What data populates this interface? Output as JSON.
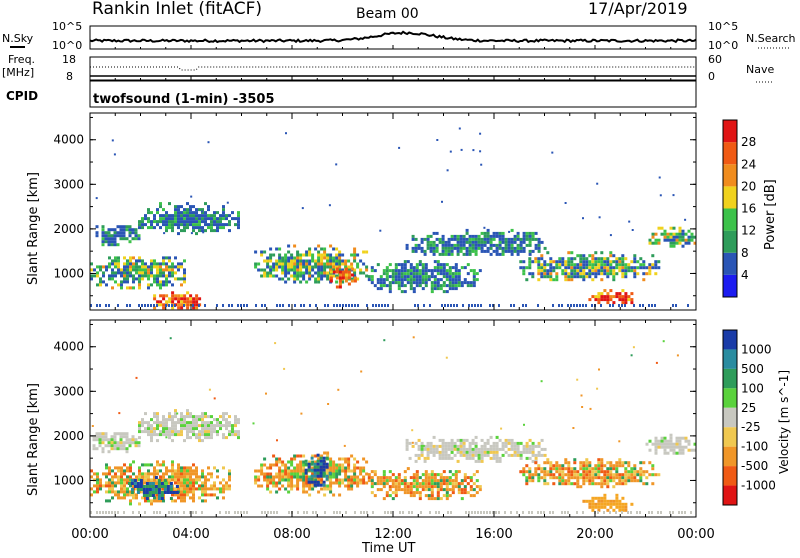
{
  "header": {
    "station": "Rankin Inlet (fitACF)",
    "beam": "Beam 00",
    "date": "17/Apr/2019"
  },
  "top_panels": {
    "nsky_label": "N.Sky",
    "nsearch_label": "N.Search",
    "freq_label": "Freq.",
    "freq_unit": "[MHz]",
    "nave_label": "Nave",
    "cpid_label": "CPID",
    "cpid_value": "twofsound (1-min) -3505",
    "noise_left_ticks": [
      "10^5",
      "10^0"
    ],
    "noise_right_ticks": [
      "10^5",
      "10^0"
    ],
    "freq_left_ticks": [
      "18",
      "8"
    ],
    "freq_right_ticks": [
      "60",
      "0"
    ]
  },
  "x_axis": {
    "label": "Time UT",
    "ticks": [
      "00:00",
      "04:00",
      "08:00",
      "12:00",
      "16:00",
      "20:00",
      "00:00"
    ]
  },
  "colors": {
    "power": [
      "#1c1cf0",
      "#2a55b5",
      "#2e9c5a",
      "#3cc24a",
      "#f0d21e",
      "#f08c1e",
      "#f05a14",
      "#e01414"
    ],
    "velocity": [
      "#1a3ca8",
      "#2a8ca0",
      "#2e9c5a",
      "#5ad23c",
      "#c8c8c0",
      "#f0c850",
      "#f09628",
      "#f05a14",
      "#e01414"
    ]
  },
  "chart_data": [
    {
      "type": "heatmap",
      "title": "Power",
      "xlabel": "Time UT",
      "ylabel": "Slant Range [km]",
      "xlim": [
        0,
        24
      ],
      "ylim": [
        180,
        4600
      ],
      "yticks": [
        1000,
        2000,
        3000,
        4000
      ],
      "colorbar": {
        "label": "Power [dB]",
        "ticks": [
          4,
          8,
          12,
          16,
          20,
          24,
          28
        ],
        "range": [
          0,
          32
        ]
      },
      "regions": [
        {
          "t": [
            0.1,
            1.9
          ],
          "r": [
            1650,
            2150
          ],
          "level": "low"
        },
        {
          "t": [
            1.9,
            5.9
          ],
          "r": [
            1900,
            2600
          ],
          "level": "low"
        },
        {
          "t": [
            0.0,
            3.8
          ],
          "r": [
            700,
            1450
          ],
          "level": "mid"
        },
        {
          "t": [
            2.5,
            4.5
          ],
          "r": [
            200,
            600
          ],
          "level": "high"
        },
        {
          "t": [
            6.5,
            11.0
          ],
          "r": [
            800,
            1650
          ],
          "level": "mid"
        },
        {
          "t": [
            9.5,
            10.5
          ],
          "r": [
            700,
            1200
          ],
          "level": "high"
        },
        {
          "t": [
            11.0,
            15.5
          ],
          "r": [
            600,
            1300
          ],
          "level": "low"
        },
        {
          "t": [
            12.5,
            18.0
          ],
          "r": [
            1400,
            2000
          ],
          "level": "low"
        },
        {
          "t": [
            17.0,
            22.5
          ],
          "r": [
            850,
            1500
          ],
          "level": "mid"
        },
        {
          "t": [
            19.5,
            21.5
          ],
          "r": [
            350,
            650
          ],
          "level": "high"
        },
        {
          "t": [
            22.0,
            24.0
          ],
          "r": [
            1600,
            2050
          ],
          "level": "mid"
        }
      ]
    },
    {
      "type": "heatmap",
      "title": "Velocity",
      "xlabel": "Time UT",
      "ylabel": "Slant Range [km]",
      "xlim": [
        0,
        24
      ],
      "ylim": [
        180,
        4600
      ],
      "yticks": [
        1000,
        2000,
        3000,
        4000
      ],
      "colorbar": {
        "label": "Velocity [m s^-1]",
        "ticks": [
          1000,
          500,
          100,
          25,
          -25,
          -100,
          -500,
          -1000
        ]
      },
      "regions": [
        {
          "t": [
            0.1,
            1.9
          ],
          "r": [
            1650,
            2150
          ],
          "level": "gray"
        },
        {
          "t": [
            1.9,
            5.9
          ],
          "r": [
            1900,
            2600
          ],
          "level": "gray"
        },
        {
          "t": [
            0.0,
            5.5
          ],
          "r": [
            500,
            1450
          ],
          "level": "orange"
        },
        {
          "t": [
            1.5,
            3.5
          ],
          "r": [
            600,
            1100
          ],
          "level": "blue"
        },
        {
          "t": [
            6.5,
            11.0
          ],
          "r": [
            700,
            1650
          ],
          "level": "orange"
        },
        {
          "t": [
            8.5,
            9.5
          ],
          "r": [
            900,
            1600
          ],
          "level": "blue"
        },
        {
          "t": [
            11.0,
            15.5
          ],
          "r": [
            600,
            1300
          ],
          "level": "orange"
        },
        {
          "t": [
            12.5,
            18.0
          ],
          "r": [
            1400,
            2000
          ],
          "level": "gray"
        },
        {
          "t": [
            17.0,
            22.5
          ],
          "r": [
            850,
            1500
          ],
          "level": "orange"
        },
        {
          "t": [
            19.5,
            21.5
          ],
          "r": [
            300,
            700
          ],
          "level": "lightorange"
        },
        {
          "t": [
            22.0,
            24.0
          ],
          "r": [
            1600,
            2050
          ],
          "level": "gray"
        }
      ]
    }
  ]
}
